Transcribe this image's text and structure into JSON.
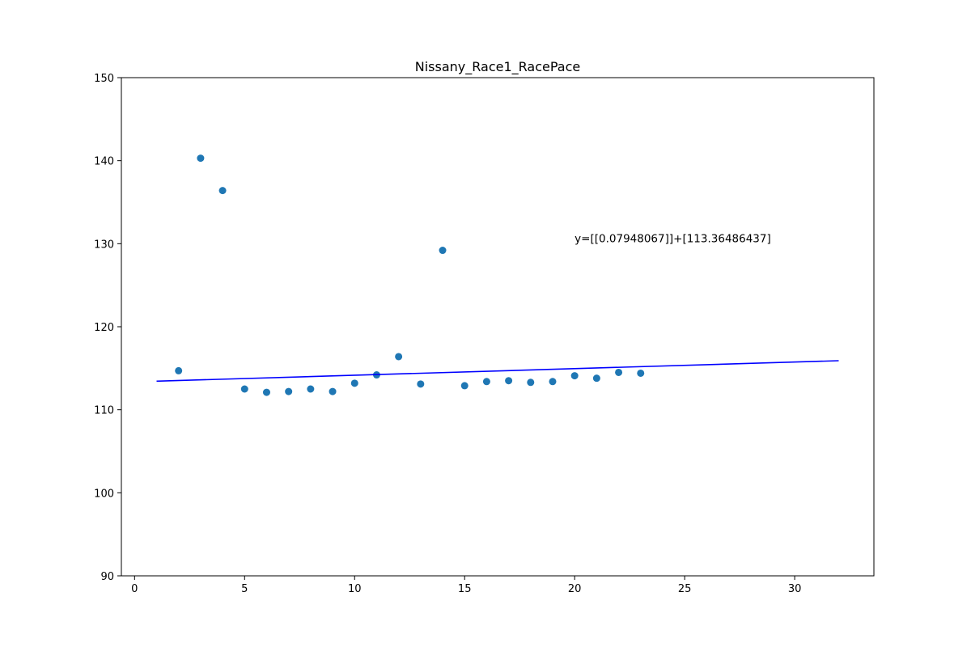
{
  "chart_data": {
    "type": "scatter",
    "title": "Nissany_Race1_RacePace",
    "xlabel": "",
    "ylabel": "",
    "xlim": [
      -0.6,
      33.6
    ],
    "ylim": [
      90,
      150
    ],
    "x_ticks": [
      0,
      5,
      10,
      15,
      20,
      25,
      30
    ],
    "y_ticks": [
      90,
      100,
      110,
      120,
      130,
      140,
      150
    ],
    "grid": false,
    "series": [
      {
        "kind": "scatter",
        "color": "#1f77b4",
        "x": [
          2,
          3,
          4,
          5,
          6,
          7,
          8,
          9,
          10,
          11,
          12,
          13,
          14,
          15,
          16,
          17,
          18,
          19,
          20,
          21,
          22,
          23
        ],
        "y": [
          114.7,
          140.3,
          136.4,
          112.5,
          112.1,
          112.2,
          112.5,
          112.2,
          113.2,
          114.2,
          116.4,
          113.1,
          129.2,
          112.9,
          113.4,
          113.5,
          113.3,
          113.4,
          114.1,
          113.8,
          114.5,
          114.4
        ]
      },
      {
        "kind": "line",
        "color": "#0000ff",
        "x": [
          1,
          32
        ],
        "y": [
          113.444,
          115.908
        ]
      }
    ],
    "annotations": [
      {
        "text": "y=[[0.07948067]]+[113.36486437]",
        "x": 20,
        "y": 130.2
      }
    ]
  }
}
